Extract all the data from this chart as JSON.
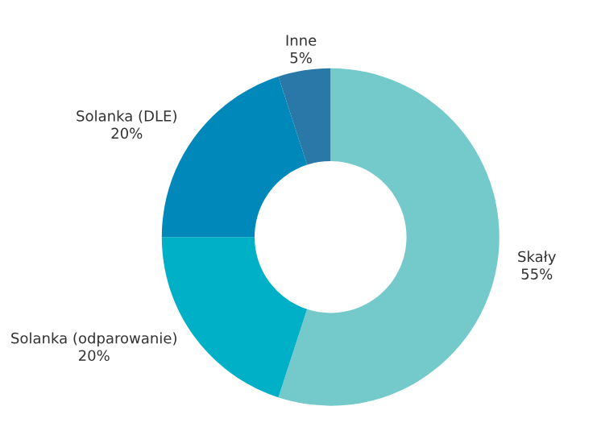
{
  "chart_data": {
    "type": "donut",
    "categories": [
      "Skały",
      "Solanka (odparowanie)",
      "Solanka (DLE)",
      "Inne"
    ],
    "values": [
      55,
      20,
      20,
      5
    ],
    "value_labels": [
      "55%",
      "20%",
      "20%",
      "5%"
    ],
    "colors": [
      "#74c9cb",
      "#00b0c7",
      "#0088bb",
      "#2a78a8"
    ]
  }
}
